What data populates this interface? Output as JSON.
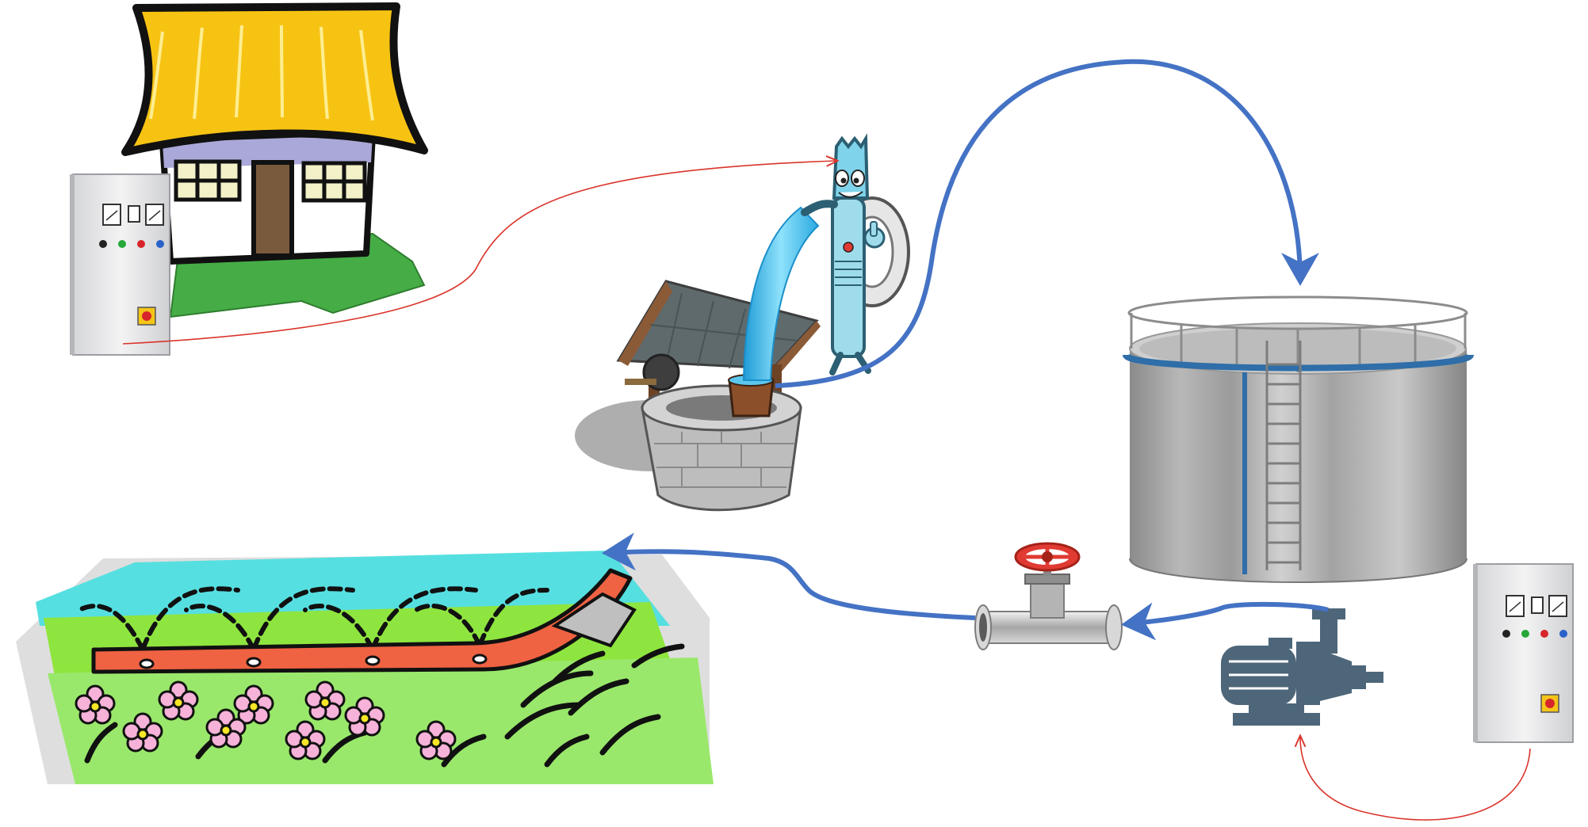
{
  "diagram": {
    "colors": {
      "water_pipe": "#4472c4",
      "signal_wire": "#d9342b",
      "roof": "#f7c313",
      "house_wall": "#a9a8d8",
      "lawn": "#46ad46",
      "panel": "#e9e9ea",
      "well_stone": "#bdbdbd",
      "well_roof": "#5f6a6d",
      "water": "#5cc7ee",
      "tank": "#a7a7a7",
      "pump": "#4d6679",
      "valve_handle": "#e03a32",
      "hose": "#ef6242",
      "sky": "#56dfe0",
      "grass": "#8fe53f",
      "flower": "#f6b2d9"
    },
    "nodes": [
      {
        "id": "house",
        "icon": "house-icon"
      },
      {
        "id": "control-panel-house",
        "icon": "control-panel-icon"
      },
      {
        "id": "well",
        "icon": "water-well-icon"
      },
      {
        "id": "submersible-pump",
        "icon": "pump-mascot-icon"
      },
      {
        "id": "storage-tank",
        "icon": "water-tank-icon"
      },
      {
        "id": "control-panel-tank",
        "icon": "control-panel-icon"
      },
      {
        "id": "surface-pump",
        "icon": "electric-pump-icon"
      },
      {
        "id": "valve",
        "icon": "pipe-valve-icon"
      },
      {
        "id": "irrigation-field",
        "icon": "sprinkler-garden-icon"
      }
    ],
    "connections": [
      {
        "from": "control-panel-house",
        "to": "submersible-pump",
        "kind": "signal"
      },
      {
        "from": "well",
        "to": "storage-tank",
        "kind": "water"
      },
      {
        "from": "storage-tank",
        "to": "surface-pump",
        "kind": "water"
      },
      {
        "from": "surface-pump",
        "to": "valve",
        "kind": "water"
      },
      {
        "from": "valve",
        "to": "irrigation-field",
        "kind": "water"
      },
      {
        "from": "control-panel-tank",
        "to": "surface-pump",
        "kind": "signal"
      }
    ]
  }
}
